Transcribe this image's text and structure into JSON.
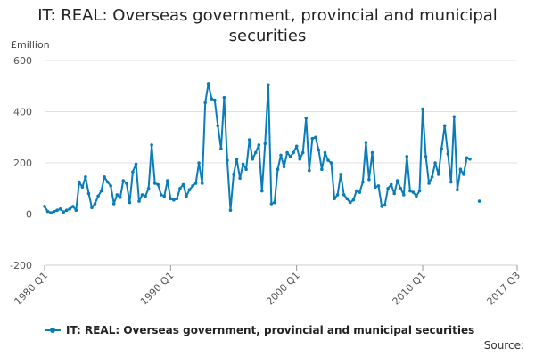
{
  "chart_data": {
    "type": "line",
    "title_lines": [
      "IT: REAL: Overseas government, provincial and municipal",
      "securities"
    ],
    "title": "IT: REAL: Overseas government, provincial and municipal securities",
    "ylabel": "£million",
    "xlabel": "",
    "ylim": [
      -200,
      600
    ],
    "yticks": [
      -200,
      0,
      200,
      400,
      600
    ],
    "x_range": [
      1980.0,
      2017.5
    ],
    "xticks": [
      {
        "label": "1980 Q1",
        "value": 1980.0
      },
      {
        "label": "1990 Q1",
        "value": 1990.0
      },
      {
        "label": "2000 Q1",
        "value": 2000.0
      },
      {
        "label": "2010 Q1",
        "value": 2010.0
      },
      {
        "label": "2017 Q3",
        "value": 2017.5
      }
    ],
    "start": 1980.0,
    "step": 0.25,
    "grid": true,
    "legend_position": "bottom",
    "series": [
      {
        "name": "IT: REAL: Overseas government, provincial and municipal securities",
        "color": "#0a7cba",
        "values": [
          30,
          10,
          5,
          10,
          15,
          20,
          8,
          15,
          20,
          30,
          15,
          125,
          105,
          145,
          80,
          25,
          40,
          70,
          90,
          145,
          125,
          110,
          40,
          75,
          65,
          130,
          120,
          45,
          165,
          195,
          50,
          75,
          70,
          100,
          270,
          120,
          115,
          75,
          70,
          130,
          60,
          55,
          60,
          100,
          115,
          70,
          95,
          110,
          120,
          200,
          120,
          435,
          510,
          450,
          445,
          345,
          255,
          455,
          210,
          15,
          155,
          215,
          140,
          195,
          175,
          290,
          215,
          240,
          270,
          90,
          275,
          505,
          40,
          45,
          175,
          230,
          185,
          240,
          225,
          240,
          265,
          215,
          240,
          375,
          170,
          295,
          300,
          250,
          175,
          240,
          210,
          200,
          60,
          75,
          155,
          75,
          60,
          45,
          55,
          90,
          85,
          125,
          280,
          135,
          240,
          105,
          110,
          30,
          35,
          100,
          115,
          80,
          130,
          100,
          75,
          225,
          90,
          85,
          70,
          90,
          410,
          225,
          120,
          145,
          200,
          155,
          255,
          345,
          235,
          125,
          380,
          95,
          175,
          155,
          220,
          215,
          null,
          null,
          50
        ]
      }
    ]
  },
  "legend_label": "IT: REAL: Overseas government, provincial and municipal securities",
  "source_label": "Source:"
}
